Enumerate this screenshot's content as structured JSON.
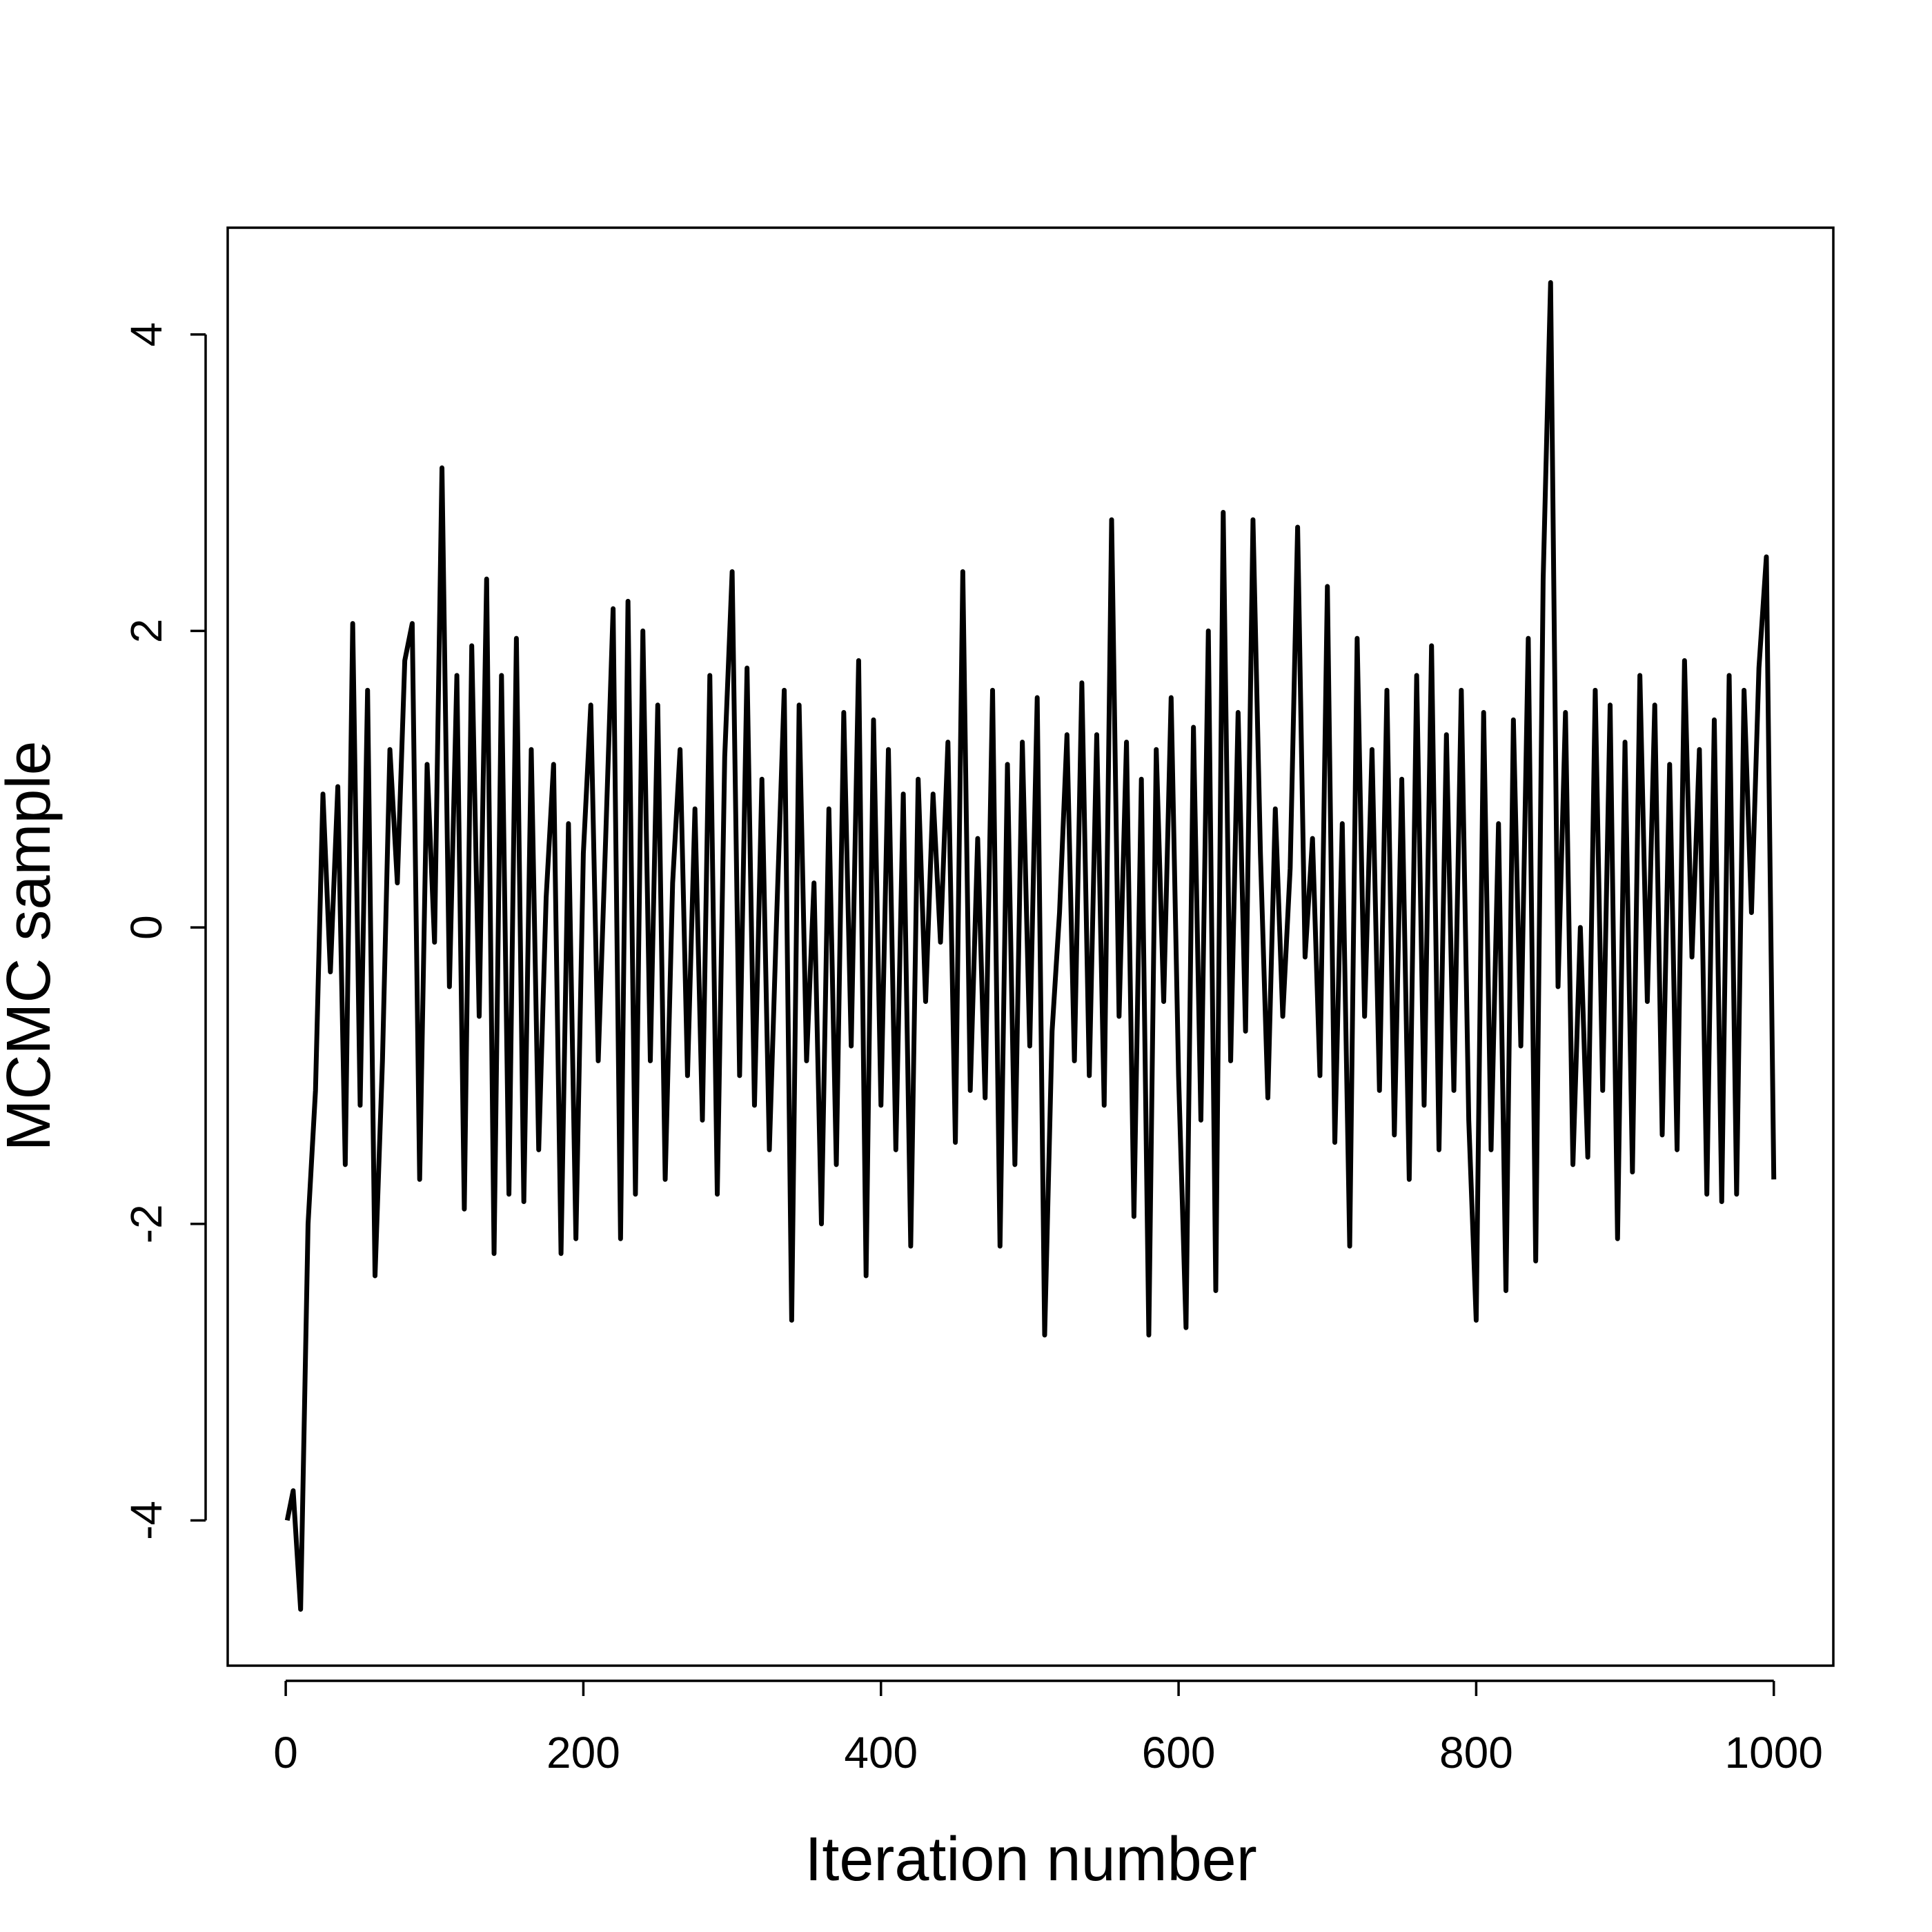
{
  "chart_data": {
    "type": "line",
    "x_label": "Iteration number",
    "y_label": "MCMC sample",
    "x": [
      1,
      5,
      10,
      15,
      20,
      25,
      30,
      35,
      40,
      45,
      50,
      55,
      60,
      65,
      70,
      75,
      80,
      85,
      90,
      95,
      100,
      105,
      110,
      115,
      120,
      125,
      130,
      135,
      140,
      145,
      150,
      155,
      160,
      165,
      170,
      175,
      180,
      185,
      190,
      195,
      200,
      205,
      210,
      215,
      220,
      225,
      230,
      235,
      240,
      245,
      250,
      255,
      260,
      265,
      270,
      275,
      280,
      285,
      290,
      295,
      300,
      305,
      310,
      315,
      320,
      325,
      330,
      335,
      340,
      345,
      350,
      355,
      360,
      365,
      370,
      375,
      380,
      385,
      390,
      395,
      400,
      405,
      410,
      415,
      420,
      425,
      430,
      435,
      440,
      445,
      450,
      455,
      460,
      465,
      470,
      475,
      480,
      485,
      490,
      495,
      500,
      505,
      510,
      515,
      520,
      525,
      530,
      535,
      540,
      545,
      550,
      555,
      560,
      565,
      570,
      575,
      580,
      585,
      590,
      595,
      600,
      605,
      610,
      615,
      620,
      625,
      630,
      635,
      640,
      645,
      650,
      655,
      660,
      665,
      670,
      675,
      680,
      685,
      690,
      695,
      700,
      705,
      710,
      715,
      720,
      725,
      730,
      735,
      740,
      745,
      750,
      755,
      760,
      765,
      770,
      775,
      780,
      785,
      790,
      795,
      800,
      805,
      810,
      815,
      820,
      825,
      830,
      835,
      840,
      845,
      850,
      855,
      860,
      865,
      870,
      875,
      880,
      885,
      890,
      895,
      900,
      905,
      910,
      915,
      920,
      925,
      930,
      935,
      940,
      945,
      950,
      955,
      960,
      965,
      970,
      975,
      980,
      985,
      990,
      995,
      1000
    ],
    "series": [
      {
        "color": "#000000",
        "values": [
          -4.0,
          -3.8,
          -4.6,
          -2.0,
          -1.1,
          0.9,
          -0.3,
          0.95,
          -1.6,
          2.05,
          -1.2,
          1.6,
          -2.35,
          -0.9,
          1.2,
          0.3,
          1.8,
          2.05,
          -1.7,
          1.1,
          -0.1,
          3.1,
          -0.4,
          1.7,
          -1.9,
          1.9,
          -0.6,
          2.35,
          -2.2,
          1.7,
          -1.8,
          1.95,
          -1.85,
          1.2,
          -1.5,
          0.2,
          1.1,
          -2.2,
          0.7,
          -2.1,
          0.5,
          1.5,
          -0.9,
          0.6,
          2.15,
          -2.1,
          2.2,
          -1.8,
          2.0,
          -0.9,
          1.5,
          -1.7,
          0.3,
          1.2,
          -1.0,
          0.8,
          -1.3,
          1.7,
          -1.8,
          1.15,
          2.4,
          -1.0,
          1.75,
          -1.2,
          1.0,
          -1.5,
          0.1,
          1.6,
          -2.65,
          1.5,
          -0.9,
          0.3,
          -2.0,
          0.8,
          -1.6,
          1.45,
          -0.8,
          1.8,
          -2.35,
          1.4,
          -1.2,
          1.2,
          -1.5,
          0.9,
          -2.15,
          1.0,
          -0.5,
          0.9,
          -0.1,
          1.25,
          -1.45,
          2.4,
          -1.1,
          0.6,
          -1.15,
          1.6,
          -2.15,
          1.1,
          -1.6,
          1.25,
          -0.8,
          1.55,
          -2.75,
          -0.7,
          0.1,
          1.3,
          -0.9,
          1.65,
          -1.0,
          1.3,
          -1.2,
          2.75,
          -0.6,
          1.25,
          -1.95,
          1.0,
          -2.75,
          1.2,
          -0.5,
          1.55,
          -1.0,
          -2.7,
          1.35,
          -1.3,
          2.0,
          -2.45,
          2.8,
          -0.9,
          1.45,
          -0.7,
          2.75,
          0.5,
          -1.15,
          0.8,
          -0.6,
          0.4,
          2.7,
          -0.2,
          0.6,
          -1.0,
          2.3,
          -1.45,
          0.7,
          -2.15,
          1.95,
          -0.6,
          1.2,
          -1.1,
          1.6,
          -1.4,
          1.0,
          -1.7,
          1.7,
          -1.2,
          1.9,
          -1.5,
          1.3,
          -1.1,
          1.6,
          -1.3,
          -2.65,
          1.45,
          -1.5,
          0.7,
          -2.45,
          1.4,
          -0.8,
          1.95,
          -2.25,
          2.35,
          4.35,
          -0.4,
          1.45,
          -1.6,
          0.0,
          -1.55,
          1.6,
          -1.1,
          1.5,
          -2.1,
          1.25,
          -1.65,
          1.7,
          -0.5,
          1.5,
          -1.4,
          1.1,
          -1.5,
          1.8,
          -0.2,
          1.2,
          -1.8,
          1.4,
          -1.85,
          1.7,
          -1.8,
          1.6,
          0.1,
          1.75,
          2.5,
          -1.7
        ]
      }
    ],
    "xlim": [
      -39,
      1040
    ],
    "ylim": [
      -4.98,
      4.72
    ],
    "xticks": [
      0,
      200,
      400,
      600,
      800,
      1000
    ],
    "yticks": [
      -4,
      -2,
      0,
      2,
      4
    ]
  }
}
